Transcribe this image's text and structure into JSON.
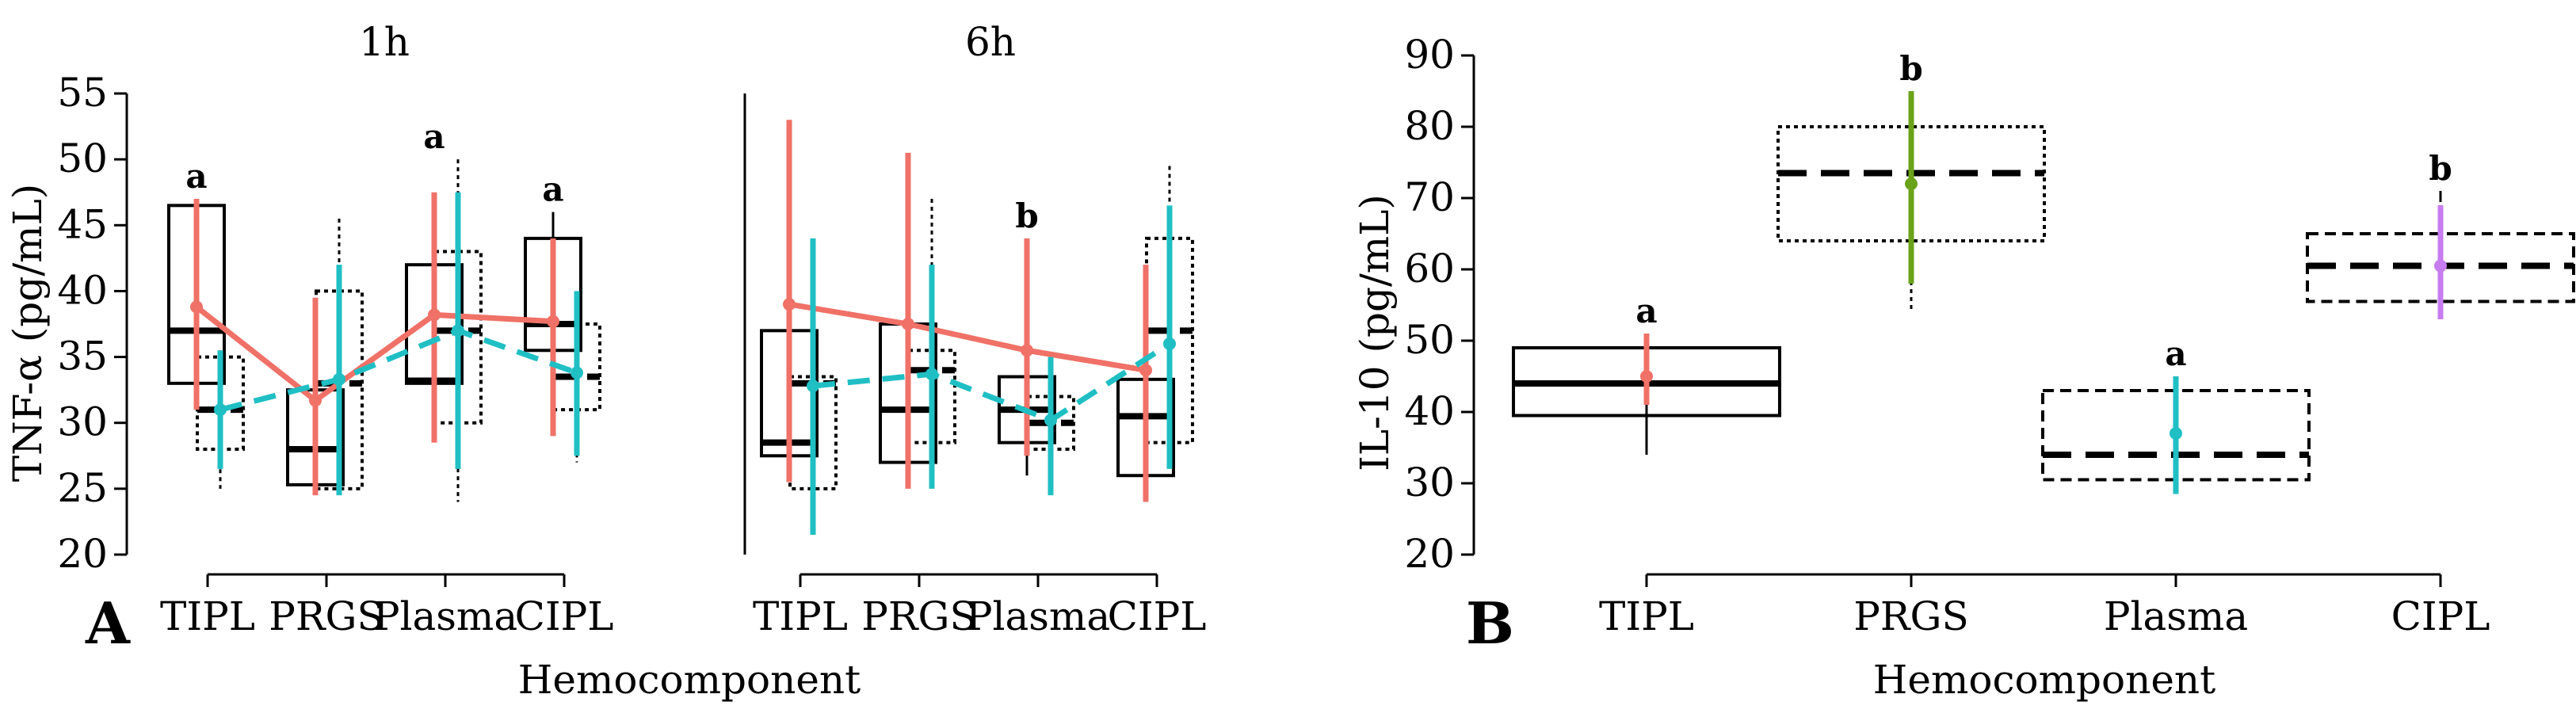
{
  "colors": {
    "tipl": "#f07167",
    "plasma": "#1fbfc4",
    "prgs": "#6aa31a",
    "cipl": "#c77cf0",
    "box": "#000000"
  },
  "panel_a": {
    "label": "A",
    "ylabel": "TNF-α (pg/mL)",
    "xlabel": "Hemocomponent",
    "yticks": [
      "20",
      "25",
      "30",
      "35",
      "40",
      "45",
      "50",
      "55"
    ],
    "categories": [
      "TIPL",
      "PRGS",
      "Plasma",
      "CIPL"
    ]
  },
  "panel_b": {
    "label": "B",
    "ylabel": "IL-10 (pg/mL)",
    "xlabel": "Hemocomponent",
    "yticks": [
      "20",
      "30",
      "40",
      "50",
      "60",
      "70",
      "80",
      "90"
    ],
    "categories": [
      "TIPL",
      "PRGS",
      "Plasma",
      "CIPL"
    ]
  },
  "chart_data": [
    {
      "type": "box",
      "panel": "A",
      "facet": "1h",
      "categories": [
        "TIPL",
        "PRGS",
        "Plasma",
        "CIPL"
      ],
      "ylim": [
        20,
        55
      ],
      "boxes_solid": [
        {
          "q1": 33,
          "median": 37,
          "q3": 46.5,
          "lower": 31,
          "upper": 47
        },
        {
          "q1": 25.3,
          "median": 28,
          "q3": 32.5,
          "lower": 25,
          "upper": 33
        },
        {
          "q1": 33,
          "median": 33.2,
          "q3": 42,
          "lower": 32.5,
          "upper": 47
        },
        {
          "q1": 35.5,
          "median": 37.5,
          "q3": 44,
          "lower": 33.5,
          "upper": 46
        }
      ],
      "boxes_dotted": [
        {
          "q1": 28,
          "median": 31,
          "q3": 35,
          "lower": 25,
          "upper": 35.5
        },
        {
          "q1": 25,
          "median": 33,
          "q3": 40,
          "lower": 25,
          "upper": 45.5
        },
        {
          "q1": 30,
          "median": 37,
          "q3": 43,
          "lower": 24,
          "upper": 50
        },
        {
          "q1": 31,
          "median": 33.5,
          "q3": 37.5,
          "lower": 27,
          "upper": 38.5
        }
      ],
      "series": [
        {
          "name": "",
          "color": "tipl",
          "means": [
            38.8,
            31.7,
            38.2,
            37.7
          ],
          "err_low": [
            31,
            24.5,
            28.5,
            29
          ],
          "err_high": [
            47,
            39.5,
            47.5,
            44
          ]
        },
        {
          "name": "",
          "color": "plasma",
          "means": [
            31,
            33.3,
            37,
            33.8
          ],
          "err_low": [
            26.5,
            24.5,
            26.5,
            27.5
          ],
          "err_high": [
            35.5,
            42,
            47.5,
            40
          ]
        }
      ],
      "significance": [
        "a",
        "",
        "a",
        "a"
      ]
    },
    {
      "type": "box",
      "panel": "A",
      "facet": "6h",
      "categories": [
        "TIPL",
        "PRGS",
        "Plasma",
        "CIPL"
      ],
      "ylim": [
        20,
        55
      ],
      "boxes_solid": [
        {
          "q1": 27.5,
          "median": 28.5,
          "q3": 37,
          "lower": 26,
          "upper": 45
        },
        {
          "q1": 27,
          "median": 31,
          "q3": 37.5,
          "lower": 25.5,
          "upper": 38
        },
        {
          "q1": 28.5,
          "median": 31,
          "q3": 33.5,
          "lower": 26,
          "upper": 42
        },
        {
          "q1": 26,
          "median": 30.5,
          "q3": 33.3,
          "lower": 25,
          "upper": 37
        }
      ],
      "boxes_dotted": [
        {
          "q1": 25,
          "median": 33,
          "q3": 33.5,
          "lower": 25,
          "upper": 35
        },
        {
          "q1": 28.5,
          "median": 34,
          "q3": 35.5,
          "lower": 25,
          "upper": 47
        },
        {
          "q1": 28,
          "median": 30,
          "q3": 32,
          "lower": 27,
          "upper": 33
        },
        {
          "q1": 28.5,
          "median": 37,
          "q3": 44,
          "lower": 28,
          "upper": 49.5
        }
      ],
      "series": [
        {
          "name": "",
          "color": "tipl",
          "means": [
            39,
            37.5,
            35.5,
            34
          ],
          "err_low": [
            25.5,
            25,
            27.5,
            24
          ],
          "err_high": [
            53,
            50.5,
            44,
            42
          ]
        },
        {
          "name": "",
          "color": "plasma",
          "means": [
            32.8,
            33.7,
            30.2,
            36
          ],
          "err_low": [
            21.5,
            25,
            24.5,
            26.5
          ],
          "err_high": [
            44,
            42,
            35,
            46.5
          ]
        }
      ],
      "significance": [
        "",
        "",
        "b",
        ""
      ]
    },
    {
      "type": "box",
      "panel": "B",
      "categories": [
        "TIPL",
        "PRGS",
        "Plasma",
        "CIPL"
      ],
      "ylim": [
        20,
        90
      ],
      "boxes": [
        {
          "style": "solid",
          "q1": 39.5,
          "median": 44,
          "q3": 49,
          "lower": 34,
          "upper": 51
        },
        {
          "style": "dotted",
          "q1": 64,
          "median": 73.5,
          "q3": 80,
          "lower": 54,
          "upper": 85
        },
        {
          "style": "dashed",
          "q1": 30.5,
          "median": 34,
          "q3": 43,
          "lower": 29,
          "upper": 45
        },
        {
          "style": "dashed",
          "q1": 55.5,
          "median": 60.5,
          "q3": 65,
          "lower": 53.5,
          "upper": 71
        }
      ],
      "points": [
        {
          "color": "tipl",
          "mean": 45,
          "err_low": 41,
          "err_high": 51
        },
        {
          "color": "prgs",
          "mean": 72,
          "err_low": 58,
          "err_high": 85
        },
        {
          "color": "plasma",
          "mean": 37,
          "err_low": 28.5,
          "err_high": 45
        },
        {
          "color": "cipl",
          "mean": 60.5,
          "err_low": 53,
          "err_high": 69
        }
      ],
      "significance": [
        "a",
        "b",
        "a",
        "b"
      ]
    }
  ]
}
